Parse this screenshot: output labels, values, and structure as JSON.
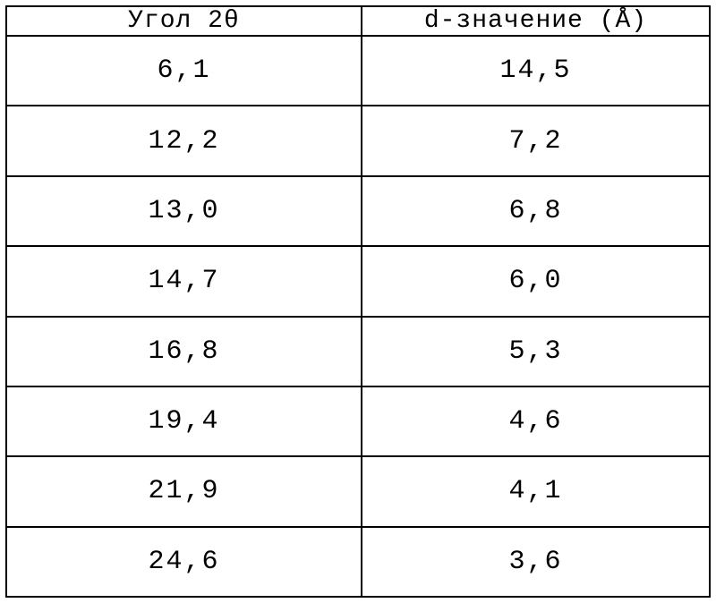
{
  "table": {
    "headers": [
      "Угол 2θ",
      "d-значение (Å)"
    ],
    "rows": [
      [
        "6,1",
        "14,5"
      ],
      [
        "12,2",
        "7,2"
      ],
      [
        "13,0",
        "6,8"
      ],
      [
        "14,7",
        "6,0"
      ],
      [
        "16,8",
        "5,3"
      ],
      [
        "19,4",
        "4,6"
      ],
      [
        "21,9",
        "4,1"
      ],
      [
        "24,6",
        "3,6"
      ]
    ]
  }
}
